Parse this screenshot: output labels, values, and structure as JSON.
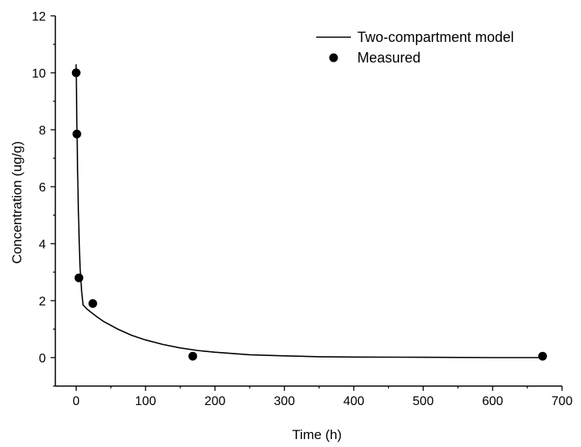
{
  "chart_data": {
    "type": "scatter",
    "title": "",
    "xlabel": "Time (h)",
    "ylabel": "Concentration (ug/g)",
    "xlim": [
      -30,
      700
    ],
    "ylim": [
      -1,
      12
    ],
    "x_ticks": [
      0,
      100,
      200,
      300,
      400,
      500,
      600,
      700
    ],
    "y_ticks": [
      0,
      2,
      4,
      6,
      8,
      10,
      12
    ],
    "grid": false,
    "legend_position": "top-right",
    "series": [
      {
        "name": "Two-compartment model",
        "type": "line",
        "color": "#000000",
        "x": [
          0,
          0.5,
          1,
          2,
          3,
          4,
          5,
          6,
          8,
          10,
          15,
          20,
          30,
          40,
          60,
          80,
          100,
          125,
          150,
          175,
          200,
          250,
          300,
          350,
          400,
          500,
          600,
          672
        ],
        "y": [
          10.3,
          9.2,
          8.3,
          6.7,
          5.4,
          4.4,
          3.6,
          3.0,
          2.3,
          1.85,
          1.72,
          1.62,
          1.43,
          1.26,
          1.0,
          0.78,
          0.62,
          0.46,
          0.34,
          0.25,
          0.19,
          0.1,
          0.06,
          0.03,
          0.02,
          0.01,
          0.0,
          0.0
        ]
      },
      {
        "name": "Measured",
        "type": "scatter",
        "color": "#000000",
        "x": [
          0,
          1,
          4,
          24,
          168,
          672
        ],
        "y": [
          10.0,
          7.85,
          2.8,
          1.9,
          0.05,
          0.05
        ]
      }
    ]
  }
}
